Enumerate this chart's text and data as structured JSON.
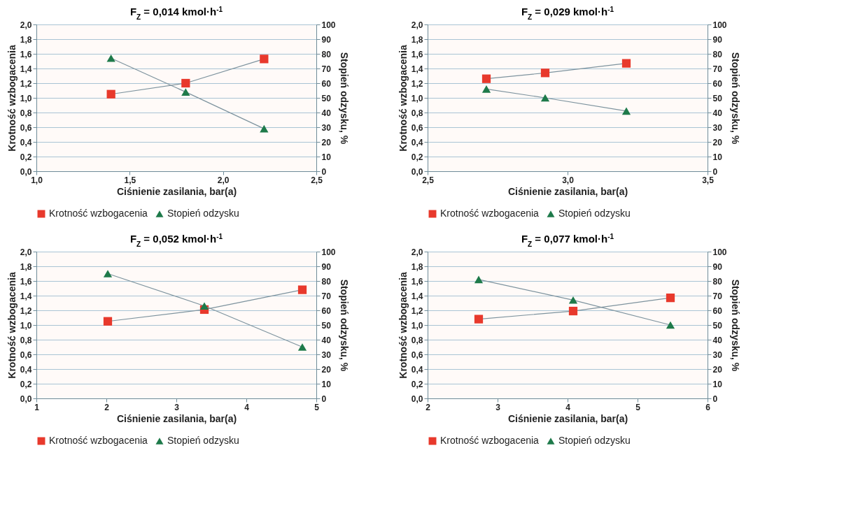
{
  "chart_data": [
    {
      "type": "line",
      "title": "F$_{Z}$ = 0,014 kmol·h$^{-1}$",
      "xlabel": "Ciśnienie zasilania, bar(a)",
      "ylabel": "Krotność wzbogacenia",
      "y2label": "Stopień odzysku, %",
      "xlim": [
        1.0,
        2.5
      ],
      "xticks": [
        {
          "value": 1.0,
          "label": "1,0"
        },
        {
          "value": 1.5,
          "label": "1,5"
        },
        {
          "value": 2.0,
          "label": "2,0"
        },
        {
          "value": 2.5,
          "label": "2,5"
        }
      ],
      "ylim": [
        0,
        2
      ],
      "yticks": [
        {
          "value": 0,
          "label": "0,0"
        },
        {
          "value": 0.2,
          "label": "0,2"
        },
        {
          "value": 0.4,
          "label": "0,4"
        },
        {
          "value": 0.6,
          "label": "0,6"
        },
        {
          "value": 0.8,
          "label": "0,8"
        },
        {
          "value": 1.0,
          "label": "1,0"
        },
        {
          "value": 1.2,
          "label": "1,2"
        },
        {
          "value": 1.4,
          "label": "1,4"
        },
        {
          "value": 1.6,
          "label": "1,6"
        },
        {
          "value": 1.8,
          "label": "1,8"
        },
        {
          "value": 2.0,
          "label": "2,0"
        }
      ],
      "y2lim": [
        0,
        100
      ],
      "y2ticks": [
        0,
        10,
        20,
        30,
        40,
        50,
        60,
        70,
        80,
        90,
        100
      ],
      "grid": "y",
      "legend": "bottom",
      "series": [
        {
          "name": "Krotność wzbogacenia",
          "color": "#e8392c",
          "marker": "square",
          "x": [
            1.4,
            1.8,
            2.22
          ],
          "values": [
            1.05,
            1.2,
            1.53
          ]
        },
        {
          "name": "Stopień odzysku",
          "color": "#1e7a4a",
          "marker": "triangle",
          "axis": "y2",
          "x": [
            1.4,
            1.8,
            2.22
          ],
          "values": [
            77,
            54,
            29
          ]
        }
      ]
    },
    {
      "type": "line",
      "title": "F$_{Z}$ = 0,029 kmol·h$^{-1}$",
      "xlabel": "Ciśnienie zasilania, bar(a)",
      "ylabel": "Krotność wzbogacenia",
      "y2label": "Stopień odzysku, %",
      "xlim": [
        2.5,
        3.5
      ],
      "xticks": [
        {
          "value": 2.5,
          "label": "2,5"
        },
        {
          "value": 3.0,
          "label": "3,0"
        },
        {
          "value": 3.5,
          "label": "3,5"
        }
      ],
      "ylim": [
        0,
        2
      ],
      "yticks": [
        {
          "value": 0,
          "label": "0,0"
        },
        {
          "value": 0.2,
          "label": "0,2"
        },
        {
          "value": 0.4,
          "label": "0,4"
        },
        {
          "value": 0.6,
          "label": "0,6"
        },
        {
          "value": 0.8,
          "label": "0,8"
        },
        {
          "value": 1.0,
          "label": "1,0"
        },
        {
          "value": 1.2,
          "label": "1,2"
        },
        {
          "value": 1.4,
          "label": "1,4"
        },
        {
          "value": 1.6,
          "label": "1,6"
        },
        {
          "value": 1.8,
          "label": "1,8"
        },
        {
          "value": 2.0,
          "label": "2,0"
        }
      ],
      "y2lim": [
        0,
        100
      ],
      "y2ticks": [
        0,
        10,
        20,
        30,
        40,
        50,
        60,
        70,
        80,
        90,
        100
      ],
      "grid": "y",
      "legend": "bottom",
      "series": [
        {
          "name": "Krotność wzbogacenia",
          "color": "#e8392c",
          "marker": "square",
          "x": [
            2.71,
            2.92,
            3.21
          ],
          "values": [
            1.26,
            1.34,
            1.47
          ]
        },
        {
          "name": "Stopień odzysku",
          "color": "#1e7a4a",
          "marker": "triangle",
          "axis": "y2",
          "x": [
            2.71,
            2.92,
            3.21
          ],
          "values": [
            56,
            50,
            41
          ]
        }
      ]
    },
    {
      "type": "line",
      "title": "F$_{Z}$ = 0,052 kmol·h$^{-1}$",
      "xlabel": "Ciśnienie zasilania, bar(a)",
      "ylabel": "Krotność wzbogacenia",
      "y2label": "Stopień odzysku, %",
      "xlim": [
        1,
        5
      ],
      "xticks": [
        1,
        2,
        3,
        4,
        5
      ],
      "ylim": [
        0,
        2
      ],
      "yticks": [
        {
          "value": 0,
          "label": "0,0"
        },
        {
          "value": 0.2,
          "label": "0,2"
        },
        {
          "value": 0.4,
          "label": "0,4"
        },
        {
          "value": 0.6,
          "label": "0,6"
        },
        {
          "value": 0.8,
          "label": "0,8"
        },
        {
          "value": 1.0,
          "label": "1,0"
        },
        {
          "value": 1.2,
          "label": "1,2"
        },
        {
          "value": 1.4,
          "label": "1,4"
        },
        {
          "value": 1.6,
          "label": "1,6"
        },
        {
          "value": 1.8,
          "label": "1,8"
        },
        {
          "value": 2.0,
          "label": "2,0"
        }
      ],
      "y2lim": [
        0,
        100
      ],
      "y2ticks": [
        0,
        10,
        20,
        30,
        40,
        50,
        60,
        70,
        80,
        90,
        100
      ],
      "grid": "y",
      "legend": "bottom",
      "series": [
        {
          "name": "Krotność wzbogacenia",
          "color": "#e8392c",
          "marker": "square",
          "x": [
            2.02,
            3.4,
            4.8
          ],
          "values": [
            1.05,
            1.21,
            1.48
          ]
        },
        {
          "name": "Stopień odzysku",
          "color": "#1e7a4a",
          "marker": "triangle",
          "axis": "y2",
          "x": [
            2.02,
            3.4,
            4.8
          ],
          "values": [
            85,
            63,
            35
          ]
        }
      ]
    },
    {
      "type": "line",
      "title": "F$_{Z}$ = 0,077 kmol·h$^{-1}$",
      "xlabel": "Ciśnienie zasilania, bar(a)",
      "ylabel": "Krotność wzbogacenia",
      "y2label": "Stopień odzysku, %",
      "xlim": [
        2,
        6
      ],
      "xticks": [
        2,
        3,
        4,
        5,
        6
      ],
      "ylim": [
        0,
        2
      ],
      "yticks": [
        {
          "value": 0,
          "label": "0,0"
        },
        {
          "value": 0.2,
          "label": "0,2"
        },
        {
          "value": 0.4,
          "label": "0,4"
        },
        {
          "value": 0.6,
          "label": "0,6"
        },
        {
          "value": 0.8,
          "label": "0,8"
        },
        {
          "value": 1.0,
          "label": "1,0"
        },
        {
          "value": 1.2,
          "label": "1,2"
        },
        {
          "value": 1.4,
          "label": "1,4"
        },
        {
          "value": 1.6,
          "label": "1,6"
        },
        {
          "value": 1.8,
          "label": "1,8"
        },
        {
          "value": 2.0,
          "label": "2,0"
        }
      ],
      "y2lim": [
        0,
        100
      ],
      "y2ticks": [
        0,
        10,
        20,
        30,
        40,
        50,
        60,
        70,
        80,
        90,
        100
      ],
      "grid": "y",
      "legend": "bottom",
      "series": [
        {
          "name": "Krotność wzbogacenia",
          "color": "#e8392c",
          "marker": "square",
          "x": [
            2.73,
            4.08,
            5.47
          ],
          "values": [
            1.08,
            1.19,
            1.37
          ]
        },
        {
          "name": "Stopień odzysku",
          "color": "#1e7a4a",
          "marker": "triangle",
          "axis": "y2",
          "x": [
            2.73,
            4.08,
            5.47
          ],
          "values": [
            81,
            67,
            50
          ]
        }
      ]
    }
  ]
}
